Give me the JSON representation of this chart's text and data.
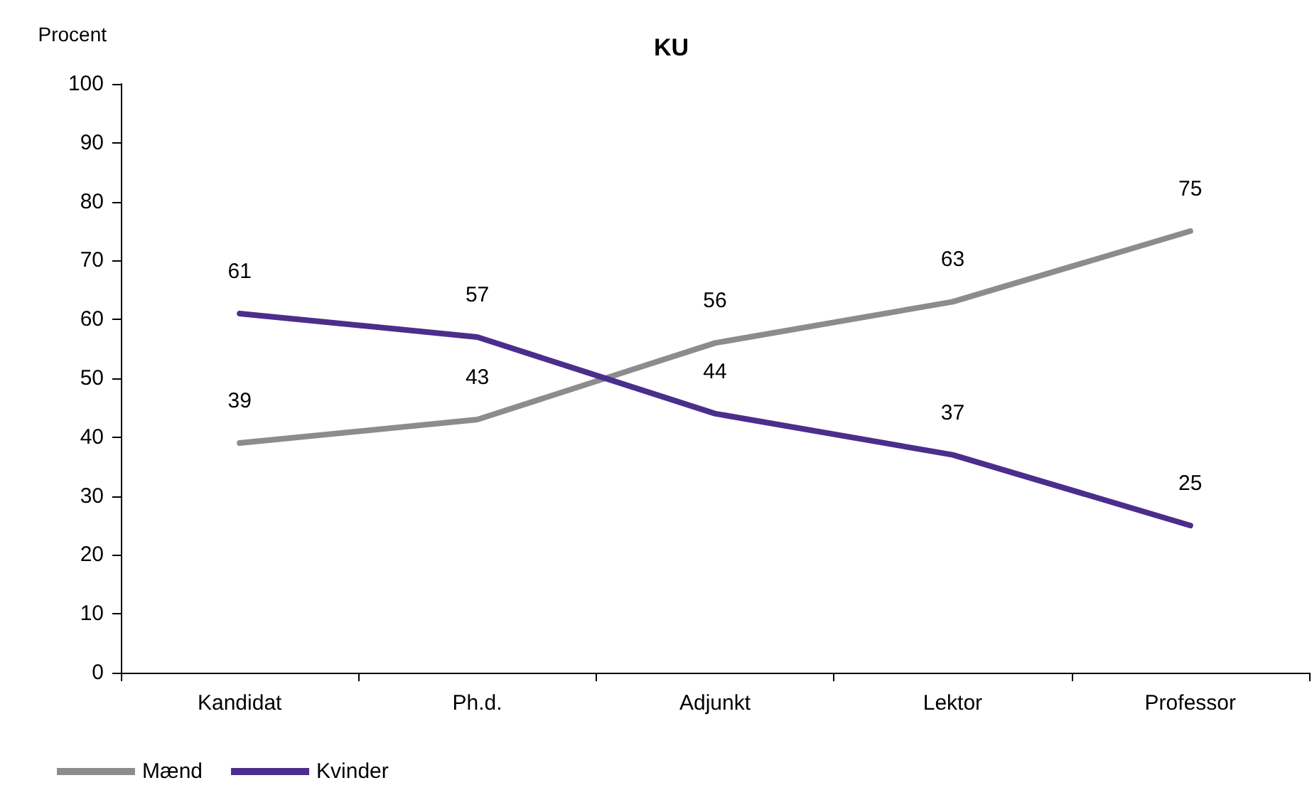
{
  "chart_data": {
    "type": "line",
    "title": "KU",
    "ylabel": "Procent",
    "categories": [
      "Kandidat",
      "Ph.d.",
      "Adjunkt",
      "Lektor",
      "Professor"
    ],
    "series": [
      {
        "name": "Mænd",
        "color": "#8c8c8c",
        "values": [
          39,
          43,
          56,
          63,
          75
        ]
      },
      {
        "name": "Kvinder",
        "color": "#4b2e8c",
        "values": [
          61,
          57,
          44,
          37,
          25
        ]
      }
    ],
    "ylim": [
      0,
      100
    ],
    "yticks": [
      0,
      10,
      20,
      30,
      40,
      50,
      60,
      70,
      80,
      90,
      100
    ],
    "grid": false,
    "legend": "bottom left",
    "data_labels": true,
    "line_style": "solid"
  }
}
